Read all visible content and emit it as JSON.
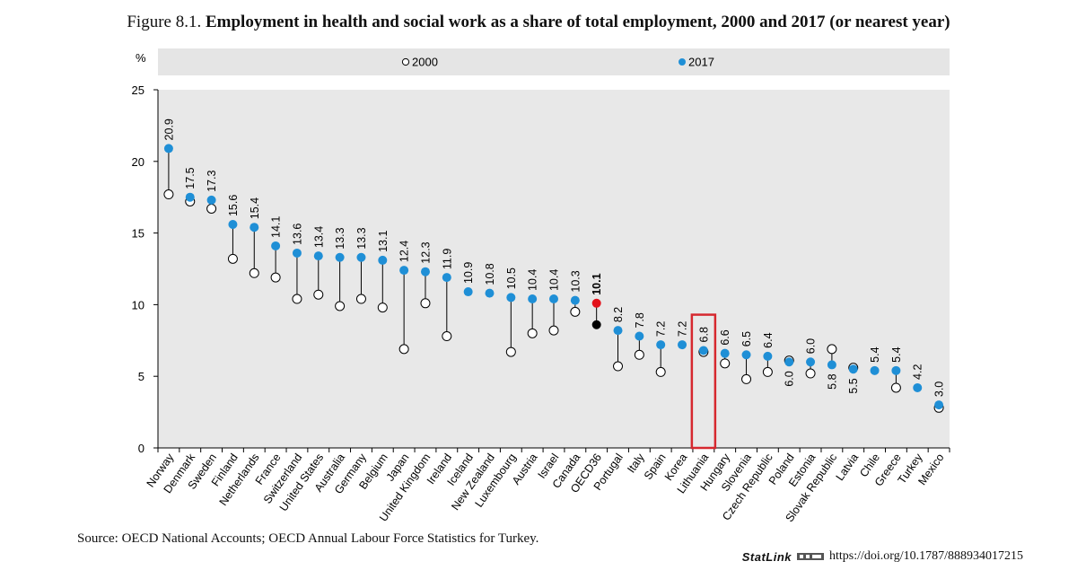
{
  "title": {
    "prefix": "Figure 8.1.",
    "main": "Employment in health and social work as a share of total employment, 2000 and 2017 (or nearest year)"
  },
  "source": "Source: OECD National Accounts; OECD Annual Labour Force Statistics for Turkey.",
  "statlink": {
    "brand": "StatLink",
    "url": "https://doi.org/10.1787/888934017215"
  },
  "colors": {
    "series_2017": "#1f8fd6",
    "oecd_2017": "#e3121b",
    "oecd_2000": "#000000",
    "highlight_box": "#d6282f",
    "plot_bg": "#e8e8e8",
    "legend_bg": "#e5e5e5"
  },
  "chart_data": {
    "type": "scatter",
    "ylabel": "%",
    "ylim": [
      0,
      25
    ],
    "yticks": [
      0,
      5,
      10,
      15,
      20,
      25
    ],
    "grid": false,
    "legend_position": "top",
    "highlight": "Lithuania",
    "reference_category": "OECD36",
    "categories": [
      "Norway",
      "Denmark",
      "Sweden",
      "Finland",
      "Netherlands",
      "France",
      "Switzerland",
      "United States",
      "Australia",
      "Germany",
      "Belgium",
      "Japan",
      "United Kingdom",
      "Ireland",
      "Iceland",
      "New Zealand",
      "Luxembourg",
      "Austria",
      "Israel",
      "Canada",
      "OECD36",
      "Portugal",
      "Italy",
      "Spain",
      "Korea",
      "Lithuania",
      "Hungary",
      "Slovenia",
      "Czech Republic",
      "Poland",
      "Estonia",
      "Slovak Republic",
      "Latvia",
      "Chile",
      "Greece",
      "Turkey",
      "Mexico"
    ],
    "series": [
      {
        "name": "2000",
        "marker": "hollow-circle",
        "values": [
          17.7,
          17.2,
          16.7,
          13.2,
          12.2,
          11.9,
          10.4,
          10.7,
          9.9,
          10.4,
          9.8,
          6.9,
          10.1,
          7.8,
          null,
          null,
          6.7,
          8.0,
          8.2,
          9.5,
          8.6,
          5.7,
          6.5,
          5.3,
          null,
          6.7,
          5.9,
          4.8,
          5.3,
          6.1,
          5.2,
          6.9,
          5.6,
          null,
          4.2,
          null,
          2.8
        ]
      },
      {
        "name": "2017",
        "marker": "filled-circle",
        "values": [
          20.9,
          17.5,
          17.3,
          15.6,
          15.4,
          14.1,
          13.6,
          13.4,
          13.3,
          13.3,
          13.1,
          12.4,
          12.3,
          11.9,
          10.9,
          10.8,
          10.5,
          10.4,
          10.4,
          10.3,
          10.1,
          8.2,
          7.8,
          7.2,
          7.2,
          6.8,
          6.6,
          6.5,
          6.4,
          6.0,
          6.0,
          5.8,
          5.5,
          5.4,
          5.4,
          4.2,
          3.0
        ],
        "labels": [
          "20.9",
          "17.5",
          "17.3",
          "15.6",
          "15.4",
          "14.1",
          "13.6",
          "13.4",
          "13.3",
          "13.3",
          "13.1",
          "12.4",
          "12.3",
          "11.9",
          "10.9",
          "10.8",
          "10.5",
          "10.4",
          "10.4",
          "10.3",
          "10.1",
          "8.2",
          "7.8",
          "7.2",
          "7.2",
          "6.8",
          "6.6",
          "6.5",
          "6.4",
          "6.0",
          "6.0",
          "5.8",
          "5.5",
          "5.4",
          "5.4",
          "4.2",
          "3.0"
        ]
      }
    ]
  }
}
